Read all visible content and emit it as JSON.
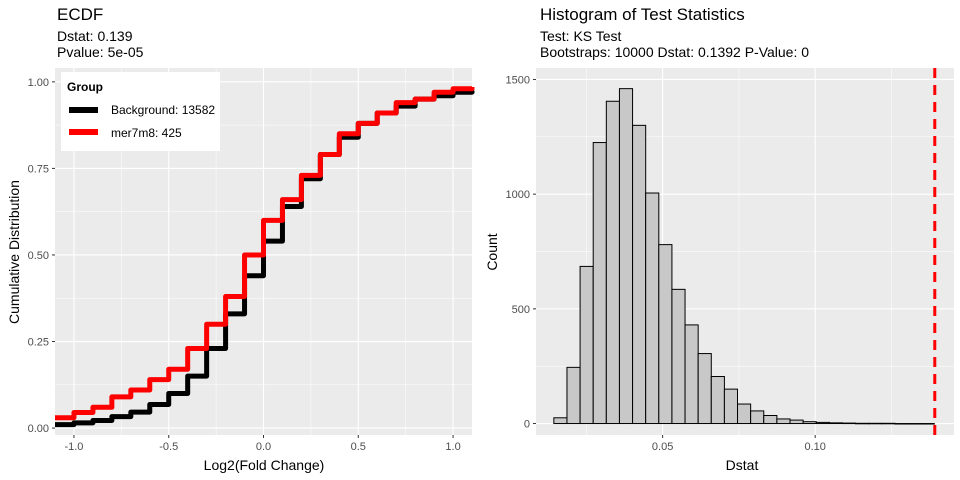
{
  "colors": {
    "panel": "#EBEBEB",
    "grid_major": "#FFFFFF",
    "background_line": "#000000",
    "mer7m8_line": "#FF0000",
    "bar_fill": "#C8C8C8",
    "dashed_line": "#FF0000"
  },
  "left": {
    "title": "ECDF",
    "subtitle_1": "Dstat: 0.139",
    "subtitle_2": "Pvalue: 5e-05",
    "xlabel": "Log2(Fold Change)",
    "ylabel": "Cumulative Distribution",
    "legend": {
      "title": "Group",
      "items": [
        "Background: 13582",
        "mer7m8: 425"
      ]
    }
  },
  "right": {
    "title": "Histogram of Test Statistics",
    "subtitle_1": "Test: KS Test",
    "subtitle_2": "Bootstraps: 10000   Dstat: 0.1392   P-Value: 0",
    "xlabel": "Dstat",
    "ylabel": "Count"
  },
  "chart_data": [
    {
      "type": "line",
      "title": "ECDF",
      "xlabel": "Log2(Fold Change)",
      "ylabel": "Cumulative Distribution",
      "xlim": [
        -1.1,
        1.1
      ],
      "ylim": [
        -0.02,
        1.04
      ],
      "xticks": [
        -1.0,
        -0.5,
        0.0,
        0.5,
        1.0
      ],
      "xtick_labels": [
        "-1.0",
        "-0.5",
        "0.0",
        "0.5",
        "1.0"
      ],
      "yticks": [
        0.0,
        0.25,
        0.5,
        0.75,
        1.0
      ],
      "ytick_labels": [
        "0.00",
        "0.25",
        "0.50",
        "0.75",
        "1.00"
      ],
      "grid": true,
      "legend_position": "top-left",
      "series": [
        {
          "name": "Background: 13582",
          "color": "#000000",
          "x": [
            -1.1,
            -1.0,
            -0.9,
            -0.8,
            -0.7,
            -0.6,
            -0.5,
            -0.4,
            -0.3,
            -0.2,
            -0.1,
            0.0,
            0.1,
            0.2,
            0.3,
            0.4,
            0.5,
            0.6,
            0.7,
            0.8,
            0.9,
            1.0,
            1.1
          ],
          "y": [
            0.01,
            0.015,
            0.022,
            0.033,
            0.046,
            0.068,
            0.1,
            0.15,
            0.23,
            0.33,
            0.44,
            0.54,
            0.64,
            0.72,
            0.79,
            0.84,
            0.88,
            0.91,
            0.93,
            0.95,
            0.96,
            0.97,
            0.975
          ]
        },
        {
          "name": "mer7m8: 425",
          "color": "#FF0000",
          "x": [
            -1.1,
            -1.0,
            -0.9,
            -0.8,
            -0.7,
            -0.6,
            -0.5,
            -0.4,
            -0.3,
            -0.2,
            -0.1,
            0.0,
            0.1,
            0.2,
            0.3,
            0.4,
            0.5,
            0.6,
            0.7,
            0.8,
            0.9,
            1.0,
            1.1
          ],
          "y": [
            0.03,
            0.045,
            0.06,
            0.09,
            0.11,
            0.14,
            0.17,
            0.23,
            0.3,
            0.38,
            0.5,
            0.6,
            0.66,
            0.73,
            0.79,
            0.85,
            0.88,
            0.91,
            0.94,
            0.95,
            0.97,
            0.98,
            0.985
          ]
        }
      ]
    },
    {
      "type": "bar",
      "title": "Histogram of Test Statistics",
      "xlabel": "Dstat",
      "ylabel": "Count",
      "xlim": [
        0.0085,
        0.1455
      ],
      "ylim": [
        -50,
        1550
      ],
      "xticks": [
        0.05,
        0.1
      ],
      "xtick_labels": [
        "0.05",
        "0.10"
      ],
      "yticks": [
        0,
        500,
        1000,
        1500
      ],
      "ytick_labels": [
        "0",
        "500",
        "1000",
        "1500"
      ],
      "grid": true,
      "bin_width": 0.0043,
      "bin_centers": [
        0.0165,
        0.0208,
        0.0251,
        0.0294,
        0.0337,
        0.038,
        0.0423,
        0.0466,
        0.0509,
        0.0552,
        0.0595,
        0.0638,
        0.0681,
        0.0724,
        0.0767,
        0.081,
        0.0853,
        0.0896,
        0.0939,
        0.0982,
        0.1025,
        0.1068,
        0.1111,
        0.1154,
        0.1197,
        0.124,
        0.1283,
        0.1326,
        0.1369
      ],
      "values": [
        25,
        245,
        685,
        1225,
        1405,
        1460,
        1300,
        1005,
        780,
        585,
        430,
        305,
        205,
        150,
        85,
        55,
        35,
        20,
        15,
        8,
        5,
        3,
        2,
        1,
        1,
        1,
        0,
        0,
        0
      ],
      "reference_line": {
        "x": 0.1392,
        "style": "dashed",
        "color": "#FF0000"
      }
    }
  ]
}
